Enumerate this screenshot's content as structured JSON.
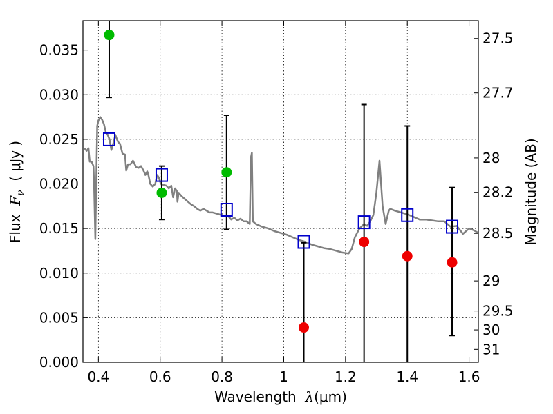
{
  "chart_data": {
    "type": "scatter",
    "xlabel": {
      "prefix": "Wavelength  ",
      "symbol": "λ",
      "unit": "(μm)"
    },
    "ylabel": {
      "prefix": "Flux  ",
      "symbol": "F",
      "subscript": "ν",
      "unit": "  ( μJy )"
    },
    "y2label": "Magnitude (AB)",
    "xlim": [
      0.35,
      1.63
    ],
    "ylim": [
      0.0,
      0.0383
    ],
    "grid": true,
    "x_ticks": [
      {
        "value": 0.4,
        "label": "0.4"
      },
      {
        "value": 0.6,
        "label": "0.6"
      },
      {
        "value": 0.8,
        "label": "0.8"
      },
      {
        "value": 1.0,
        "label": "1"
      },
      {
        "value": 1.2,
        "label": "1.2"
      },
      {
        "value": 1.4,
        "label": "1.4"
      },
      {
        "value": 1.6,
        "label": "1.6"
      }
    ],
    "y_ticks": [
      {
        "value": 0.0,
        "label": "0.000"
      },
      {
        "value": 0.005,
        "label": "0.005"
      },
      {
        "value": 0.01,
        "label": "0.010"
      },
      {
        "value": 0.015,
        "label": "0.015"
      },
      {
        "value": 0.02,
        "label": "0.020"
      },
      {
        "value": 0.025,
        "label": "0.025"
      },
      {
        "value": 0.03,
        "label": "0.030"
      },
      {
        "value": 0.035,
        "label": "0.035"
      }
    ],
    "y2_ticks": [
      {
        "value": 27.5,
        "label": "27.5"
      },
      {
        "value": 27.7,
        "label": "27.7"
      },
      {
        "value": 28.0,
        "label": "28"
      },
      {
        "value": 28.2,
        "label": "28.2"
      },
      {
        "value": 28.5,
        "label": "28.5"
      },
      {
        "value": 29.0,
        "label": "29"
      },
      {
        "value": 29.5,
        "label": "29.5"
      },
      {
        "value": 30.0,
        "label": "30"
      },
      {
        "value": 31.0,
        "label": "31"
      }
    ],
    "series": [
      {
        "kind": "model_spectrum",
        "color": "#808080",
        "x": [
          0.355,
          0.362,
          0.368,
          0.372,
          0.378,
          0.384,
          0.386,
          0.39,
          0.396,
          0.4,
          0.406,
          0.412,
          0.418,
          0.424,
          0.43,
          0.436,
          0.442,
          0.448,
          0.455,
          0.46,
          0.464,
          0.47,
          0.478,
          0.486,
          0.49,
          0.496,
          0.504,
          0.512,
          0.522,
          0.53,
          0.538,
          0.546,
          0.552,
          0.558,
          0.562,
          0.568,
          0.576,
          0.584,
          0.59,
          0.596,
          0.602,
          0.61,
          0.62,
          0.628,
          0.636,
          0.642,
          0.648,
          0.654,
          0.656,
          0.66,
          0.67,
          0.68,
          0.69,
          0.7,
          0.71,
          0.72,
          0.73,
          0.74,
          0.75,
          0.76,
          0.77,
          0.78,
          0.79,
          0.8,
          0.81,
          0.82,
          0.83,
          0.84,
          0.85,
          0.86,
          0.87,
          0.88,
          0.89,
          0.894,
          0.897,
          0.9,
          0.91,
          0.93,
          0.95,
          0.97,
          0.99,
          1.01,
          1.03,
          1.05,
          1.07,
          1.09,
          1.11,
          1.13,
          1.15,
          1.17,
          1.19,
          1.21,
          1.22,
          1.23,
          1.245,
          1.26,
          1.27,
          1.28,
          1.29,
          1.3,
          1.31,
          1.32,
          1.33,
          1.34,
          1.345,
          1.36,
          1.38,
          1.4,
          1.42,
          1.44,
          1.46,
          1.48,
          1.5,
          1.52,
          1.54,
          1.56,
          1.58,
          1.6,
          1.615,
          1.63
        ],
        "y": [
          0.024,
          0.0237,
          0.024,
          0.0225,
          0.0225,
          0.022,
          0.02,
          0.0138,
          0.0265,
          0.0271,
          0.0275,
          0.0272,
          0.0267,
          0.0258,
          0.0255,
          0.025,
          0.0238,
          0.0245,
          0.0255,
          0.025,
          0.0247,
          0.0245,
          0.0234,
          0.0233,
          0.0215,
          0.0222,
          0.0222,
          0.0226,
          0.0219,
          0.0218,
          0.022,
          0.0215,
          0.021,
          0.0214,
          0.021,
          0.02,
          0.0197,
          0.02,
          0.021,
          0.0207,
          0.02,
          0.0199,
          0.0198,
          0.0195,
          0.0198,
          0.0185,
          0.0195,
          0.0192,
          0.018,
          0.019,
          0.0186,
          0.0183,
          0.018,
          0.0177,
          0.0175,
          0.0172,
          0.017,
          0.0172,
          0.017,
          0.0168,
          0.0168,
          0.0167,
          0.0166,
          0.0165,
          0.0164,
          0.0164,
          0.016,
          0.0162,
          0.0159,
          0.0161,
          0.0158,
          0.0158,
          0.0155,
          0.023,
          0.0235,
          0.0158,
          0.0155,
          0.0152,
          0.015,
          0.0147,
          0.0145,
          0.0143,
          0.014,
          0.0137,
          0.0135,
          0.0132,
          0.013,
          0.0128,
          0.0127,
          0.0125,
          0.0123,
          0.0122,
          0.0127,
          0.014,
          0.015,
          0.0155,
          0.0153,
          0.0158,
          0.0165,
          0.019,
          0.0226,
          0.0175,
          0.0155,
          0.017,
          0.0172,
          0.017,
          0.0168,
          0.0166,
          0.0163,
          0.016,
          0.016,
          0.0159,
          0.0158,
          0.0158,
          0.0152,
          0.0153,
          0.0144,
          0.015,
          0.0148,
          0.0145
        ]
      },
      {
        "kind": "filter_flux_boxes",
        "color": "#0000cc",
        "x": [
          0.435,
          0.605,
          0.815,
          1.065,
          1.26,
          1.4,
          1.545
        ],
        "y": [
          0.025,
          0.021,
          0.0171,
          0.0135,
          0.0157,
          0.0165,
          0.0152
        ]
      },
      {
        "kind": "detections",
        "color": "#00bb00",
        "x": [
          0.435,
          0.605,
          0.815
        ],
        "y": [
          0.0367,
          0.019,
          0.0213
        ]
      },
      {
        "kind": "low_significance",
        "color": "#ee0000",
        "x": [
          1.065,
          1.26,
          1.4,
          1.545
        ],
        "y": [
          0.0039,
          0.0135,
          0.0119,
          0.0112
        ]
      },
      {
        "kind": "error_bars",
        "color": "#000000",
        "x": [
          0.435,
          0.605,
          0.815,
          1.065,
          1.26,
          1.4,
          1.545
        ],
        "low": [
          0.0297,
          0.016,
          0.0149,
          0.0,
          0.0,
          0.0,
          0.003
        ],
        "high": [
          0.0383,
          0.022,
          0.0277,
          0.0134,
          0.0289,
          0.0265,
          0.0196
        ]
      }
    ]
  }
}
